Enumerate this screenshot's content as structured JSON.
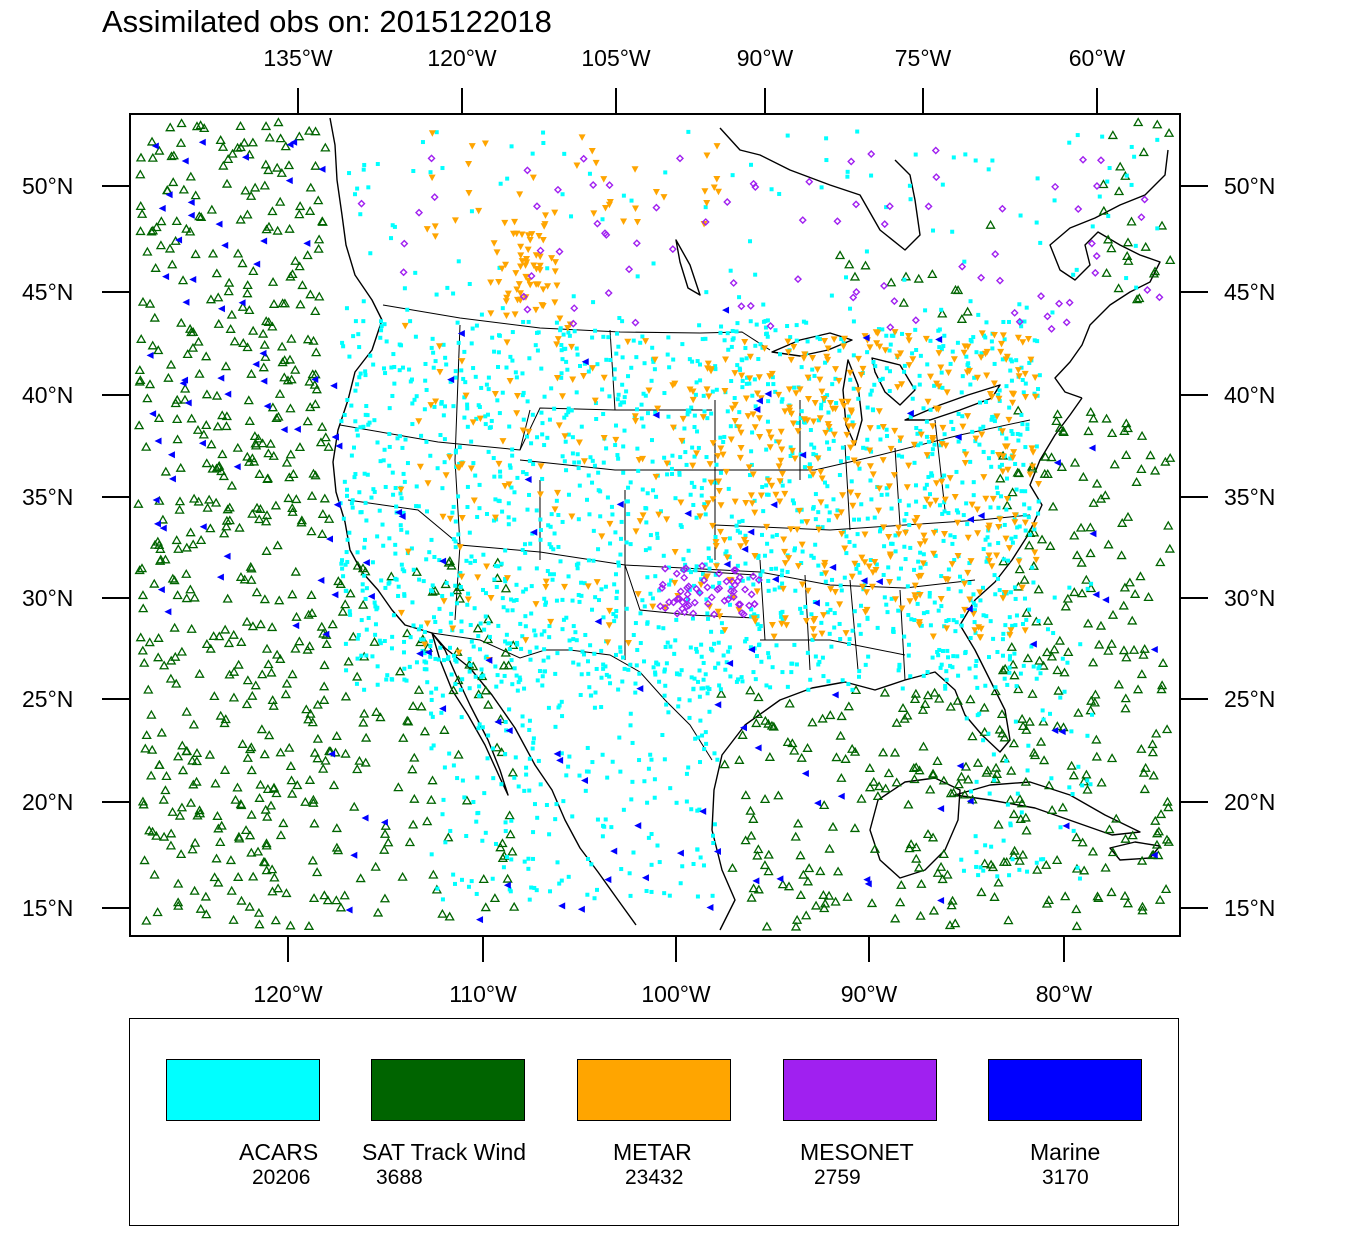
{
  "title": "Assimilated obs on: 2015122018",
  "axes": {
    "top_lon_labels": [
      "135°W",
      "120°W",
      "105°W",
      "90°W",
      "75°W",
      "60°W"
    ],
    "bottom_lon_labels": [
      "120°W",
      "110°W",
      "100°W",
      "90°W",
      "80°W"
    ],
    "left_lat_labels": [
      "50°N",
      "45°N",
      "40°N",
      "35°N",
      "30°N",
      "25°N",
      "20°N",
      "15°N"
    ],
    "right_lat_labels": [
      "50°N",
      "45°N",
      "40°N",
      "35°N",
      "30°N",
      "25°N",
      "20°N",
      "15°N"
    ]
  },
  "legend": [
    {
      "name": "ACARS",
      "count": "20206",
      "color": "#00ffff"
    },
    {
      "name": "SAT Track Wind",
      "count": "3688",
      "color": "#006400"
    },
    {
      "name": "METAR",
      "count": "23432",
      "color": "#ffa500"
    },
    {
      "name": "MESONET",
      "count": "2759",
      "color": "#a020f0"
    },
    {
      "name": "Marine",
      "count": "3170",
      "color": "#0000ff"
    }
  ],
  "map": {
    "projection": "Lambert conformal",
    "region": "North America (CONUS, Gulf of Mexico, Caribbean)",
    "extent": {
      "lon_min": -130,
      "lon_max": -56,
      "lat_min": 14,
      "lat_max": 53
    },
    "symbols": {
      "ACARS": "small filled square",
      "SAT Track Wind": "open triangle",
      "METAR": "filled inverted triangle",
      "MESONET": "small diamond",
      "Marine": "filled left-pointing triangle"
    }
  }
}
